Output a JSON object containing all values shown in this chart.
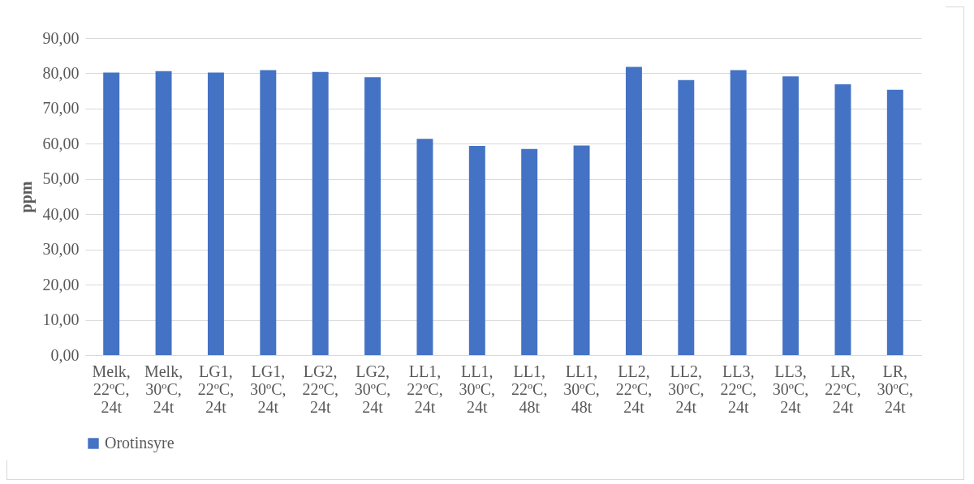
{
  "chart_data": {
    "type": "bar",
    "ylabel": "ppm",
    "categories": [
      "Melk, 22ºC, 24t",
      "Melk, 30ºC, 24t",
      "LG1, 22ºC, 24t",
      "LG1, 30ºC, 24t",
      "LG2, 22ºC, 24t",
      "LG2, 30ºC, 24t",
      "LL1, 22ºC, 24t",
      "LL1, 30ºC, 24t",
      "LL1, 22ºC, 48t",
      "LL1, 30ºC, 48t",
      "LL2, 22ºC, 24t",
      "LL2, 30ºC, 24t",
      "LL3, 22ºC, 24t",
      "LL3, 30ºC, 24t",
      "LR, 22ºC, 24t",
      "LR, 30ºC, 24t"
    ],
    "series": [
      {
        "name": "Orotinsyre",
        "color": "#4472c4",
        "values": [
          80.2,
          80.6,
          80.2,
          80.9,
          80.4,
          78.9,
          61.4,
          59.4,
          58.5,
          59.5,
          81.8,
          78.1,
          80.9,
          79.1,
          76.9,
          75.3
        ]
      }
    ],
    "ylim": [
      0,
      90
    ],
    "yticks": [
      {
        "value": 0,
        "label": "0,00"
      },
      {
        "value": 10,
        "label": "10,00"
      },
      {
        "value": 20,
        "label": "20,00"
      },
      {
        "value": 30,
        "label": "30,00"
      },
      {
        "value": 40,
        "label": "40,00"
      },
      {
        "value": 50,
        "label": "50,00"
      },
      {
        "value": 60,
        "label": "60,00"
      },
      {
        "value": 70,
        "label": "70,00"
      },
      {
        "value": 80,
        "label": "80,00"
      },
      {
        "value": 90,
        "label": "90,00"
      }
    ],
    "grid": "y",
    "legend": "bottom"
  }
}
